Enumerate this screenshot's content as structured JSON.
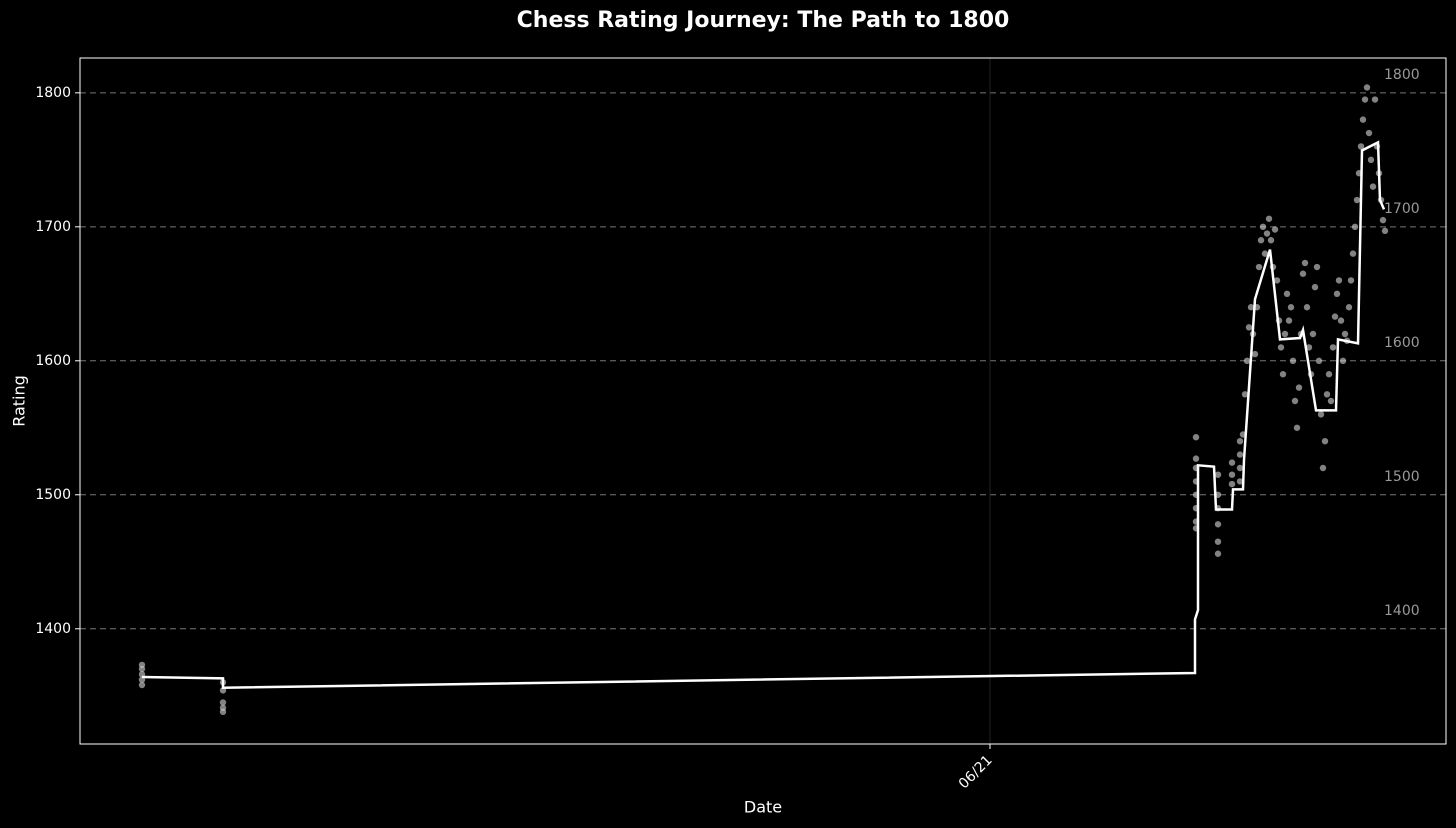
{
  "chart_data": {
    "type": "line",
    "title": "Chess Rating Journey: The Path to 1800",
    "x_label": "Date",
    "y_label": "Rating",
    "xlim": [
      0,
      1366
    ],
    "xticks": [
      {
        "value": 910,
        "label": "06/21"
      }
    ],
    "ylim": [
      1314,
      1826
    ],
    "yticks": [
      1400,
      1500,
      1600,
      1700,
      1800
    ],
    "grid": true,
    "milestones": [
      1400,
      1500,
      1600,
      1700,
      1800
    ],
    "series": [
      {
        "type": "scatter",
        "color": "#c8c8c8",
        "x": [
          62,
          62,
          62,
          62,
          62,
          143,
          143,
          143,
          143,
          143,
          1116,
          1116,
          1116,
          1116,
          1116,
          1116,
          1116,
          1116,
          1138,
          1138,
          1138,
          1138,
          1138,
          1138,
          1152,
          1152,
          1152,
          1160,
          1160,
          1160,
          1160,
          1163,
          1165,
          1167,
          1169,
          1171,
          1173,
          1175,
          1177,
          1179,
          1181,
          1183,
          1185,
          1187,
          1189,
          1191,
          1193,
          1195,
          1197,
          1199,
          1201,
          1203,
          1205,
          1207,
          1209,
          1211,
          1213,
          1215,
          1217,
          1219,
          1221,
          1223,
          1225,
          1227,
          1229,
          1231,
          1233,
          1235,
          1237,
          1239,
          1241,
          1243,
          1245,
          1247,
          1249,
          1251,
          1253,
          1255,
          1257,
          1259,
          1261,
          1263,
          1265,
          1267,
          1269,
          1271,
          1273,
          1275,
          1277,
          1279,
          1281,
          1283,
          1285,
          1287,
          1289,
          1291,
          1293,
          1295,
          1297,
          1299,
          1301,
          1303,
          1305
        ],
        "values": [
          1373,
          1370,
          1366,
          1362,
          1358,
          1360,
          1354,
          1345,
          1341,
          1338,
          1543,
          1527,
          1520,
          1510,
          1500,
          1490,
          1480,
          1475,
          1515,
          1500,
          1490,
          1478,
          1465,
          1456,
          1524,
          1515,
          1508,
          1540,
          1530,
          1520,
          1510,
          1545,
          1575,
          1600,
          1625,
          1640,
          1620,
          1605,
          1640,
          1670,
          1690,
          1700,
          1680,
          1695,
          1706,
          1690,
          1670,
          1698,
          1660,
          1630,
          1610,
          1590,
          1620,
          1650,
          1630,
          1640,
          1600,
          1570,
          1550,
          1580,
          1620,
          1665,
          1673,
          1640,
          1610,
          1590,
          1620,
          1655,
          1670,
          1600,
          1560,
          1520,
          1540,
          1575,
          1590,
          1570,
          1610,
          1633,
          1650,
          1660,
          1630,
          1600,
          1620,
          1615,
          1640,
          1660,
          1680,
          1700,
          1720,
          1740,
          1760,
          1780,
          1795,
          1804,
          1770,
          1750,
          1730,
          1795,
          1760,
          1740,
          1720,
          1705,
          1697
        ]
      },
      {
        "type": "line",
        "color": "#ffffff",
        "x": [
          62,
          143,
          143,
          1115,
          1115,
          1118,
          1118,
          1134,
          1136,
          1152,
          1153,
          1163,
          1164,
          1175,
          1190,
          1200,
          1220,
          1223,
          1236,
          1256,
          1258,
          1278,
          1282,
          1298,
          1300,
          1304
        ],
        "values": [
          1364,
          1363,
          1356,
          1367,
          1407,
          1414,
          1522,
          1521,
          1489,
          1489,
          1504,
          1504,
          1526,
          1646,
          1683,
          1616,
          1617,
          1623,
          1563,
          1563,
          1616,
          1613,
          1757,
          1763,
          1720,
          1713
        ]
      }
    ]
  }
}
